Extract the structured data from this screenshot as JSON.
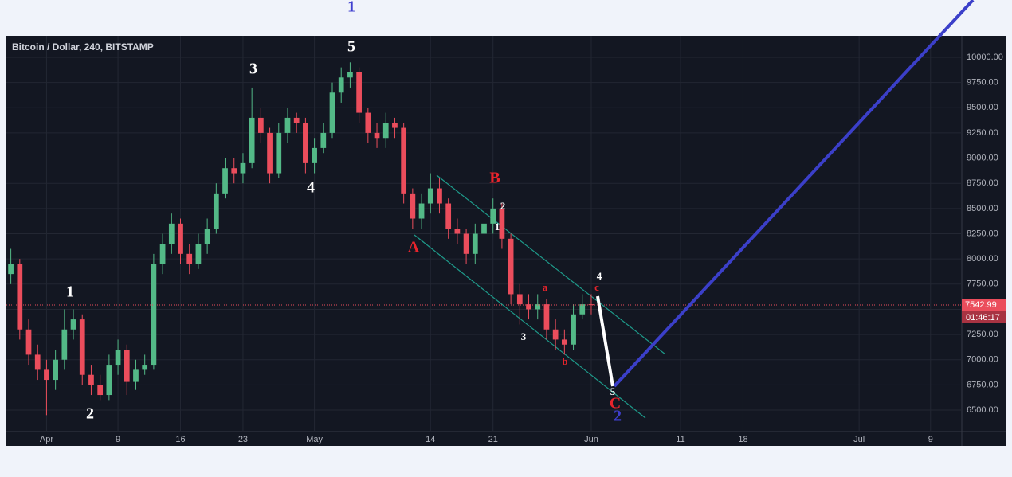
{
  "chart_data": {
    "type": "candlestick",
    "title": "Bitcoin / Dollar, 240, BITSTAMP",
    "x": [
      -4,
      -3,
      -2,
      -1,
      0,
      1,
      2,
      3,
      4,
      5,
      6,
      7,
      8,
      9,
      10,
      11,
      12,
      13,
      14,
      15,
      16,
      17,
      18,
      19,
      20,
      21,
      22,
      23,
      24,
      25,
      26,
      27,
      28,
      29,
      30,
      31,
      32,
      33,
      34,
      35,
      36,
      37,
      38,
      39,
      40,
      41,
      42,
      43,
      44,
      45,
      46,
      47,
      48,
      49,
      50,
      51,
      52,
      53,
      54,
      55,
      56,
      57,
      58,
      59,
      60,
      61
    ],
    "open": [
      7850,
      7950,
      7300,
      7050,
      6900,
      6800,
      7000,
      7300,
      7400,
      6850,
      6750,
      6650,
      6950,
      7100,
      6780,
      6900,
      6950,
      7950,
      8150,
      8350,
      8050,
      7950,
      8150,
      8300,
      8650,
      8900,
      8850,
      8950,
      9400,
      9250,
      8850,
      9250,
      9400,
      9350,
      8950,
      9100,
      9250,
      9650,
      9800,
      9850,
      9450,
      9250,
      9200,
      9350,
      9300,
      8650,
      8400,
      8550,
      8700,
      8550,
      8300,
      8250,
      8050,
      8250,
      8350,
      8500,
      8200,
      7650,
      7550,
      7500,
      7550,
      7300,
      7200,
      7150,
      7450,
      7550
    ],
    "high": [
      8100,
      8000,
      7400,
      7150,
      7000,
      7100,
      7500,
      7500,
      7450,
      6950,
      6850,
      7050,
      7200,
      7150,
      7000,
      7050,
      8050,
      8250,
      8450,
      8400,
      8150,
      8250,
      8400,
      8750,
      9000,
      9000,
      9050,
      9700,
      9500,
      9300,
      9350,
      9500,
      9450,
      9400,
      9200,
      9350,
      9750,
      9900,
      9950,
      9900,
      9500,
      9350,
      9450,
      9400,
      9350,
      8700,
      8650,
      8850,
      8800,
      8600,
      8400,
      8300,
      8350,
      8450,
      8600,
      8550,
      8250,
      7750,
      7650,
      7650,
      7600,
      7400,
      7300,
      7550,
      7650,
      7650
    ],
    "low": [
      7750,
      7200,
      6950,
      6800,
      6450,
      6700,
      6900,
      7200,
      6750,
      6650,
      6600,
      6600,
      6850,
      6650,
      6700,
      6850,
      6900,
      7850,
      8050,
      7950,
      7850,
      7900,
      8050,
      8250,
      8600,
      8750,
      8750,
      8900,
      9150,
      8750,
      8800,
      9150,
      9250,
      8850,
      8850,
      9050,
      9200,
      9550,
      9700,
      9350,
      9150,
      9100,
      9100,
      9200,
      8550,
      8300,
      8300,
      8450,
      8450,
      8200,
      8150,
      7950,
      7950,
      8150,
      8250,
      8100,
      7550,
      7350,
      7400,
      7400,
      7200,
      7100,
      7050,
      7100,
      7400,
      7450
    ],
    "close": [
      7950,
      7300,
      7050,
      6900,
      6800,
      7000,
      7300,
      7400,
      6850,
      6750,
      6650,
      6950,
      7100,
      6780,
      6900,
      6950,
      7950,
      8150,
      8350,
      8050,
      7950,
      8150,
      8300,
      8650,
      8900,
      8850,
      8950,
      9400,
      9250,
      8850,
      9250,
      9400,
      9350,
      8950,
      9100,
      9250,
      9650,
      9800,
      9850,
      9450,
      9250,
      9200,
      9350,
      9300,
      8650,
      8400,
      8550,
      8700,
      8550,
      8300,
      8250,
      8050,
      8250,
      8350,
      8500,
      8200,
      7650,
      7550,
      7500,
      7550,
      7300,
      7200,
      7150,
      7450,
      7550,
      7543
    ],
    "up_color": "#53b987",
    "down_color": "#eb4d5c",
    "xlim": [
      -4.5,
      102.5
    ],
    "xticks": [
      {
        "value": 0,
        "label": "Apr"
      },
      {
        "value": 8,
        "label": "9"
      },
      {
        "value": 15,
        "label": "16"
      },
      {
        "value": 22,
        "label": "23"
      },
      {
        "value": 30,
        "label": "May"
      },
      {
        "value": 43,
        "label": "14"
      },
      {
        "value": 50,
        "label": "21"
      },
      {
        "value": 61,
        "label": "Jun"
      },
      {
        "value": 71,
        "label": "11"
      },
      {
        "value": 78,
        "label": "18"
      },
      {
        "value": 91,
        "label": "Jul"
      },
      {
        "value": 99,
        "label": "9"
      }
    ],
    "ylim": [
      6287,
      10213
    ],
    "yticks": [
      {
        "value": 6500,
        "label": "6500.00"
      },
      {
        "value": 6750,
        "label": "6750.00"
      },
      {
        "value": 7000,
        "label": "7000.00"
      },
      {
        "value": 7250,
        "label": "7250.00"
      },
      {
        "value": 7500,
        "label": "7500.00"
      },
      {
        "value": 7750,
        "label": "7750.00"
      },
      {
        "value": 8000,
        "label": "8000.00"
      },
      {
        "value": 8250,
        "label": "8250.00"
      },
      {
        "value": 8500,
        "label": "8500.00"
      },
      {
        "value": 8750,
        "label": "8750.00"
      },
      {
        "value": 9000,
        "label": "9000.00"
      },
      {
        "value": 9250,
        "label": "9250.00"
      },
      {
        "value": 9500,
        "label": "9500.00"
      },
      {
        "value": 9750,
        "label": "9750.00"
      },
      {
        "value": 10000,
        "label": "10000.00"
      }
    ],
    "grid": true,
    "last_price": 7542.99,
    "last_price_color": "#eb4d5c",
    "countdown": "01:46:17",
    "annotations": [
      {
        "text": "1",
        "color": "#3f3fcf"
      },
      {
        "text": "5",
        "color": "#ffffff"
      },
      {
        "text": "3",
        "color": "#ffffff"
      },
      {
        "text": "4",
        "color": "#ffffff"
      },
      {
        "text": "1",
        "color": "#ffffff"
      },
      {
        "text": "2",
        "color": "#ffffff"
      },
      {
        "text": "B",
        "color": "#e8242c"
      },
      {
        "text": "A",
        "color": "#e8242c"
      },
      {
        "text": "2",
        "color": "#ffffff"
      },
      {
        "text": "1",
        "color": "#ffffff"
      },
      {
        "text": "3",
        "color": "#ffffff"
      },
      {
        "text": "a",
        "color": "#e8242c"
      },
      {
        "text": "b",
        "color": "#e8242c"
      },
      {
        "text": "4",
        "color": "#ffffff"
      },
      {
        "text": "c",
        "color": "#e8242c"
      },
      {
        "text": "5",
        "color": "#ffffff"
      },
      {
        "text": "C",
        "color": "#e8242c"
      },
      {
        "text": "2",
        "color": "#3f3fcf"
      }
    ]
  }
}
